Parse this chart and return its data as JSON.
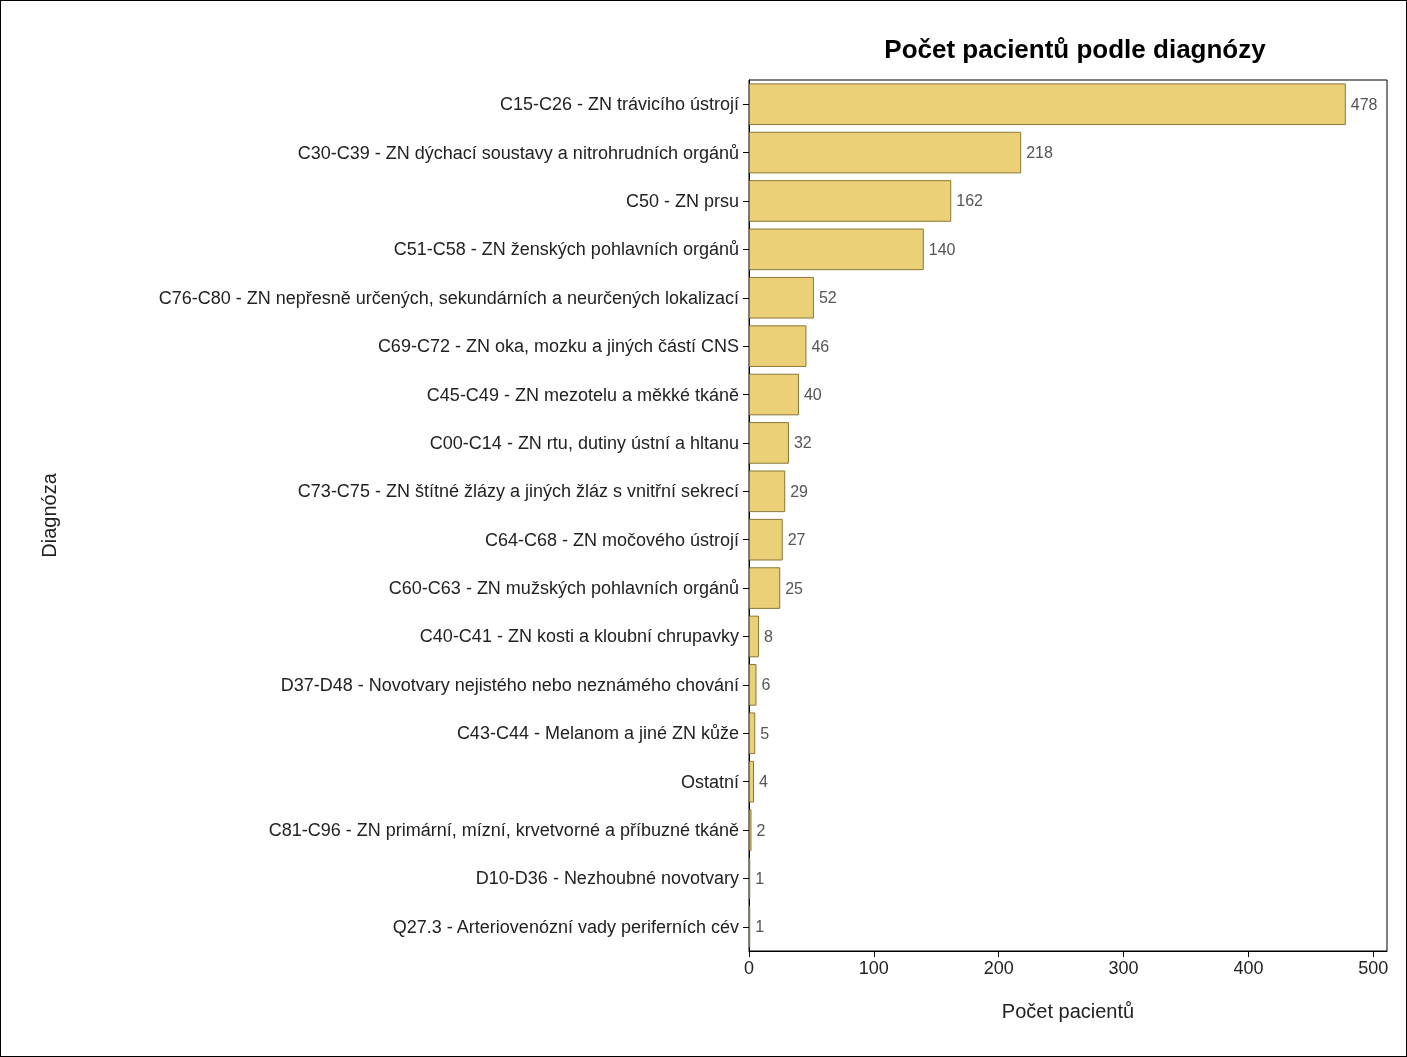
{
  "chart_data": {
    "type": "bar",
    "orientation": "horizontal",
    "title": "Počet pacientů podle diagnózy",
    "xlabel": "Počet pacientů",
    "ylabel": "Diagnóza",
    "categories": [
      "C15-C26 - ZN trávicího ústrojí",
      "C30-C39 - ZN dýchací soustavy a nitrohrudních orgánů",
      "C50 - ZN prsu",
      "C51-C58 - ZN ženských pohlavních orgánů",
      "C76-C80 - ZN nepřesně určených, sekundárních a neurčených lokalizací",
      "C69-C72 - ZN oka, mozku a jiných částí CNS",
      "C45-C49 - ZN mezotelu a měkké tkáně",
      "C00-C14 - ZN rtu, dutiny ústní a hltanu",
      "C73-C75 - ZN štítné žlázy a jiných žláz s vnitřní sekrecí",
      "C64-C68 - ZN močového ústrojí",
      "C60-C63 - ZN mužských pohlavních orgánů",
      "C40-C41 - ZN kosti a kloubní chrupavky",
      "D37-D48 - Novotvary nejistého nebo neznámého chování",
      "C43-C44 - Melanom a jiné ZN kůže",
      "Ostatní",
      "C81-C96 - ZN primární, mízní, krvetvorné a příbuzné tkáně",
      "D10-D36 - Nezhoubné novotvary",
      "Q27.3 - Arteriovenózní vady periferních cév"
    ],
    "values": [
      478,
      218,
      162,
      140,
      52,
      46,
      40,
      32,
      29,
      27,
      25,
      8,
      6,
      5,
      4,
      2,
      1,
      1
    ],
    "color": "#ecd078",
    "data_labels": true,
    "xlim": [
      0,
      511
    ],
    "xticks": [
      0,
      100,
      200,
      300,
      400,
      500
    ],
    "grid": false
  }
}
